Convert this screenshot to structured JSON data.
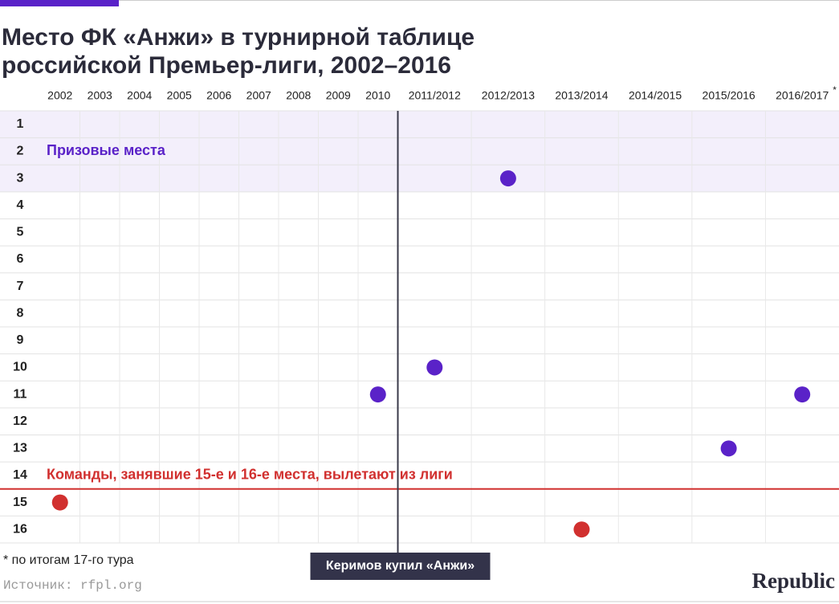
{
  "chart_data": {
    "type": "dot",
    "title": "Место ФК «Анжи» в турнирной таблице российской Премьер-лиги, 2002–2016",
    "categories": [
      "2002",
      "2003",
      "2004",
      "2005",
      "2006",
      "2007",
      "2008",
      "2009",
      "2010",
      "2011/2012",
      "2012/2013",
      "2013/2014",
      "2014/2015",
      "2015/2016",
      "2016/2017"
    ],
    "category_note_mark": "*",
    "values": [
      15,
      null,
      null,
      null,
      null,
      null,
      null,
      null,
      11,
      10,
      3,
      16,
      null,
      13,
      11
    ],
    "color": "#5a22c8",
    "ylim": [
      0.5,
      16.5
    ],
    "y_inverted": true,
    "yticks": [
      1,
      2,
      3,
      4,
      5,
      6,
      7,
      8,
      9,
      10,
      11,
      12,
      13,
      14,
      15,
      16
    ],
    "grid": true,
    "zones": [
      {
        "label": "Призовые места",
        "from": 1,
        "to": 3,
        "color": "#5a22c8",
        "style": "band"
      },
      {
        "label": "Команды, занявшие 15-е и 16-е места, вылетают из лиги",
        "from": 15,
        "to": 16,
        "color": "#d1302f",
        "style": "line"
      }
    ],
    "event": {
      "label": "Керимов купил «Анжи»",
      "after": "2010"
    },
    "footnote": "* по итогам 17-го тура",
    "source": "Источник: rfpl.org",
    "brand": "Republic"
  }
}
